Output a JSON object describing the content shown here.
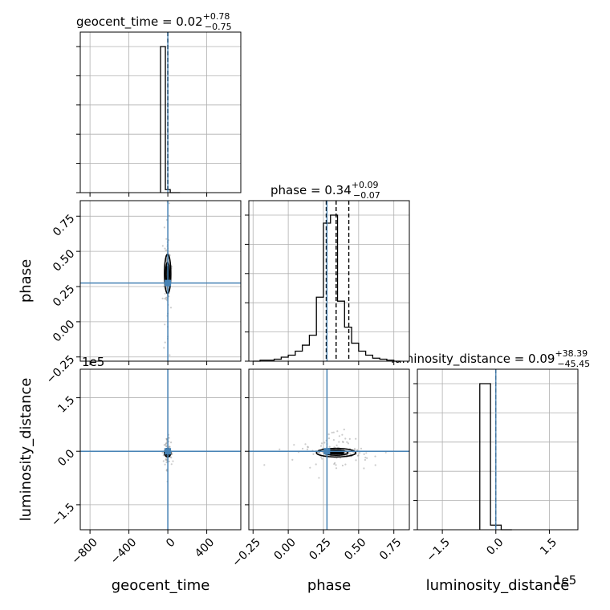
{
  "chart_data": {
    "type": "corner",
    "parameters": [
      "geocent_time",
      "phase",
      "luminosity_distance"
    ],
    "truth_color": "#4682b4",
    "grid": true,
    "titles": [
      {
        "name": "geocent_time",
        "median": "0.02",
        "plus": "+0.78",
        "minus": "−0.75"
      },
      {
        "name": "phase",
        "median": "0.34",
        "plus": "+0.09",
        "minus": "−0.07"
      },
      {
        "name": "luminosity_distance",
        "median": "0.09",
        "plus": "+38.39",
        "minus": "−45.45"
      }
    ],
    "axes": {
      "geocent_time": {
        "range": [
          -900,
          750
        ],
        "ticks": [
          -800,
          -400,
          0,
          400
        ],
        "tick_labels": [
          "−800",
          "−400",
          "0",
          "400"
        ],
        "truth": 0
      },
      "phase": {
        "range": [
          -0.28,
          0.86
        ],
        "ticks": [
          -0.25,
          0.0,
          0.25,
          0.5,
          0.75
        ],
        "tick_labels": [
          "−0.25",
          "0.00",
          "0.25",
          "0.50",
          "0.75"
        ],
        "truth": 0.275
      },
      "luminosity_distance": {
        "range": [
          -220000,
          230000
        ],
        "ticks": [
          -150000,
          0,
          150000
        ],
        "tick_labels": [
          "−1.5",
          "0.0",
          "1.5"
        ],
        "offset_label": "1e5",
        "truth": 0
      }
    },
    "hist_1d": {
      "geocent_time": {
        "bins": [
          -75,
          -25,
          25,
          75,
          125
        ],
        "counts": [
          0.97,
          0.02,
          0.0,
          0.0
        ],
        "quantiles": [
          -0.75,
          0.02,
          0.78
        ]
      },
      "phase": {
        "bins": [
          -0.25,
          -0.2,
          -0.15,
          -0.1,
          -0.05,
          0.0,
          0.05,
          0.1,
          0.15,
          0.2,
          0.25,
          0.3,
          0.35,
          0.4,
          0.45,
          0.5,
          0.55,
          0.6,
          0.65,
          0.7,
          0.75,
          0.8
        ],
        "counts": [
          0.0,
          0.005,
          0.005,
          0.01,
          0.02,
          0.03,
          0.05,
          0.08,
          0.13,
          0.32,
          0.69,
          0.73,
          0.3,
          0.17,
          0.09,
          0.05,
          0.03,
          0.015,
          0.01,
          0.005,
          0.0
        ],
        "quantiles": [
          0.27,
          0.34,
          0.43
        ]
      },
      "luminosity_distance": {
        "bins": [
          -45000,
          -15000,
          15000,
          45000
        ],
        "counts": [
          0.95,
          0.03,
          0.0
        ],
        "quantiles": [
          -45.45,
          0.09,
          38.39
        ]
      }
    }
  },
  "labels": {
    "x": [
      "geocent_time",
      "phase",
      "luminosity_distance"
    ],
    "y": [
      "phase",
      "luminosity_distance"
    ]
  }
}
